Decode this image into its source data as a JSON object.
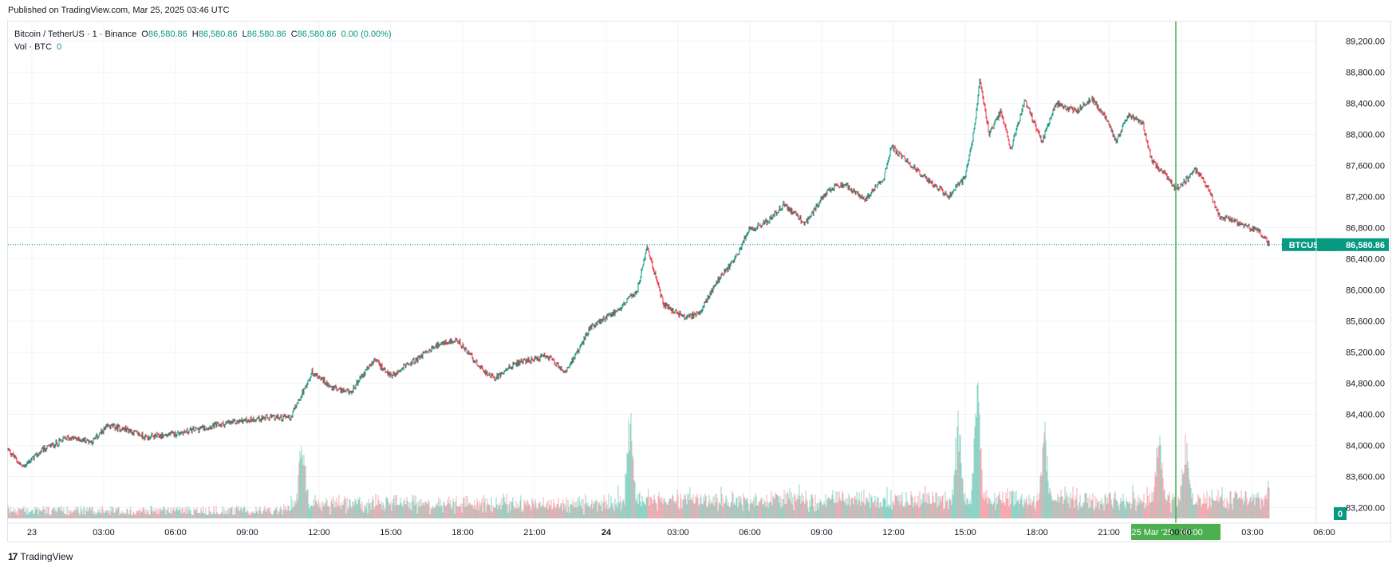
{
  "header": {
    "published": "Published on TradingView.com, Mar 25, 2025 03:46 UTC"
  },
  "legend": {
    "symbol": "Bitcoin / TetherUS · 1 · Binance",
    "o_label": "O",
    "o_value": "86,580.86",
    "h_label": "H",
    "h_value": "86,580.86",
    "l_label": "L",
    "l_value": "86,580.86",
    "c_label": "C",
    "c_value": "86,580.86",
    "change": "0.00 (0.00%)",
    "vol_label": "Vol · BTC",
    "vol_value": "0"
  },
  "footer": {
    "brand": "TradingView",
    "logo_text": "17"
  },
  "colors": {
    "up": "#089981",
    "down": "#f23645",
    "crosshair": "#22ab94",
    "time_badge": "#4caf50",
    "grid": "#f0f3fa"
  },
  "chart_data": {
    "type": "candlestick",
    "title": "Bitcoin / TetherUS · 1 · Binance",
    "symbol_badge": "BTCUSDT",
    "last_price": 86580.86,
    "last_price_label": "86,580.86",
    "volume_badge": "0",
    "y_min": 83000,
    "y_max": 89450,
    "y_ticks": [
      89200,
      88800,
      88400,
      88000,
      87600,
      87200,
      86800,
      86400,
      86000,
      85600,
      85200,
      84800,
      84400,
      84000,
      83600,
      83200
    ],
    "y_tick_labels": [
      "89,200.00",
      "88,800.00",
      "88,400.00",
      "88,000.00",
      "87,600.00",
      "87,200.00",
      "86,800.00",
      "86,400.00",
      "86,000.00",
      "85,600.00",
      "85,200.00",
      "84,800.00",
      "84,400.00",
      "84,000.00",
      "83,600.00",
      "83,200.00"
    ],
    "x_range_hours": [
      -1,
      31
    ],
    "x_ticks": [
      {
        "hour": 0,
        "label": "23",
        "bold": false
      },
      {
        "hour": 3,
        "label": "03:00",
        "bold": false
      },
      {
        "hour": 6,
        "label": "06:00",
        "bold": false
      },
      {
        "hour": 9,
        "label": "09:00",
        "bold": false
      },
      {
        "hour": 12,
        "label": "12:00",
        "bold": false
      },
      {
        "hour": 15,
        "label": "15:00",
        "bold": false
      },
      {
        "hour": 18,
        "label": "18:00",
        "bold": false
      },
      {
        "hour": 21,
        "label": "21:00",
        "bold": false
      },
      {
        "hour": 24,
        "label": "24",
        "bold": true
      },
      {
        "hour": 27,
        "label": "03:00",
        "bold": false
      },
      {
        "hour": 30,
        "label": "06:00",
        "bold": false
      },
      {
        "hour": 33,
        "label": "09:00",
        "bold": false
      },
      {
        "hour": 36,
        "label": "12:00",
        "bold": false
      },
      {
        "hour": 39,
        "label": "15:00",
        "bold": false
      },
      {
        "hour": 42,
        "label": "18:00",
        "bold": false
      },
      {
        "hour": 45,
        "label": "21:00",
        "bold": false
      },
      {
        "hour": 48,
        "label": "00:00",
        "bold": false
      },
      {
        "hour": 51,
        "label": "03:00",
        "bold": false
      },
      {
        "hour": 54,
        "label": "06:00",
        "bold": false
      }
    ],
    "x_start_hour": -1.0,
    "x_end_hour": 54.0,
    "crosshair_hour": 47.8,
    "crosshair_label": "25 Mar '25",
    "crosshair_time": "00:00",
    "last_bar_hour": 51.7,
    "price_path": [
      {
        "hour": -1.0,
        "price": 83950
      },
      {
        "hour": -0.4,
        "price": 83720
      },
      {
        "hour": 0.5,
        "price": 83950
      },
      {
        "hour": 1.5,
        "price": 84100
      },
      {
        "hour": 2.5,
        "price": 84050
      },
      {
        "hour": 3.2,
        "price": 84250
      },
      {
        "hour": 4.0,
        "price": 84200
      },
      {
        "hour": 4.8,
        "price": 84100
      },
      {
        "hour": 6.0,
        "price": 84150
      },
      {
        "hour": 7.5,
        "price": 84250
      },
      {
        "hour": 9.5,
        "price": 84350
      },
      {
        "hour": 10.8,
        "price": 84360
      },
      {
        "hour": 11.2,
        "price": 84600
      },
      {
        "hour": 11.7,
        "price": 84950
      },
      {
        "hour": 12.5,
        "price": 84750
      },
      {
        "hour": 13.3,
        "price": 84680
      },
      {
        "hour": 14.3,
        "price": 85100
      },
      {
        "hour": 15.0,
        "price": 84900
      },
      {
        "hour": 16.0,
        "price": 85100
      },
      {
        "hour": 17.0,
        "price": 85300
      },
      {
        "hour": 17.8,
        "price": 85350
      },
      {
        "hour": 18.6,
        "price": 85050
      },
      {
        "hour": 19.3,
        "price": 84850
      },
      {
        "hour": 20.2,
        "price": 85050
      },
      {
        "hour": 21.5,
        "price": 85150
      },
      {
        "hour": 22.3,
        "price": 84950
      },
      {
        "hour": 22.8,
        "price": 85200
      },
      {
        "hour": 23.3,
        "price": 85500
      },
      {
        "hour": 24.5,
        "price": 85750
      },
      {
        "hour": 25.3,
        "price": 86000
      },
      {
        "hour": 25.7,
        "price": 86550
      },
      {
        "hour": 26.4,
        "price": 85800
      },
      {
        "hour": 27.3,
        "price": 85650
      },
      {
        "hour": 27.9,
        "price": 85700
      },
      {
        "hour": 28.6,
        "price": 86100
      },
      {
        "hour": 29.4,
        "price": 86400
      },
      {
        "hour": 29.9,
        "price": 86750
      },
      {
        "hour": 30.8,
        "price": 86900
      },
      {
        "hour": 31.4,
        "price": 87100
      },
      {
        "hour": 32.3,
        "price": 86850
      },
      {
        "hour": 33.3,
        "price": 87300
      },
      {
        "hour": 34.0,
        "price": 87350
      },
      {
        "hour": 34.8,
        "price": 87150
      },
      {
        "hour": 35.6,
        "price": 87450
      },
      {
        "hour": 35.9,
        "price": 87850
      },
      {
        "hour": 36.6,
        "price": 87650
      },
      {
        "hour": 37.3,
        "price": 87450
      },
      {
        "hour": 38.3,
        "price": 87200
      },
      {
        "hour": 39.0,
        "price": 87450
      },
      {
        "hour": 39.4,
        "price": 88100
      },
      {
        "hour": 39.6,
        "price": 88700
      },
      {
        "hour": 40.0,
        "price": 88000
      },
      {
        "hour": 40.5,
        "price": 88300
      },
      {
        "hour": 40.9,
        "price": 87800
      },
      {
        "hour": 41.5,
        "price": 88450
      },
      {
        "hour": 42.2,
        "price": 87900
      },
      {
        "hour": 42.8,
        "price": 88400
      },
      {
        "hour": 43.6,
        "price": 88300
      },
      {
        "hour": 44.3,
        "price": 88450
      },
      {
        "hour": 44.9,
        "price": 88200
      },
      {
        "hour": 45.3,
        "price": 87900
      },
      {
        "hour": 45.8,
        "price": 88250
      },
      {
        "hour": 46.4,
        "price": 88150
      },
      {
        "hour": 46.8,
        "price": 87650
      },
      {
        "hour": 47.3,
        "price": 87500
      },
      {
        "hour": 47.8,
        "price": 87300
      },
      {
        "hour": 48.2,
        "price": 87400
      },
      {
        "hour": 48.6,
        "price": 87550
      },
      {
        "hour": 49.1,
        "price": 87350
      },
      {
        "hour": 49.6,
        "price": 86950
      },
      {
        "hour": 50.1,
        "price": 86900
      },
      {
        "hour": 50.8,
        "price": 86800
      },
      {
        "hour": 51.3,
        "price": 86750
      },
      {
        "hour": 51.7,
        "price": 86580
      }
    ],
    "volume_spikes": [
      {
        "hour": 11.3,
        "volume": 0.55
      },
      {
        "hour": 25.0,
        "volume": 0.7
      },
      {
        "hour": 39.5,
        "volume": 1.0
      },
      {
        "hour": 38.7,
        "volume": 0.65
      },
      {
        "hour": 42.3,
        "volume": 0.55
      },
      {
        "hour": 47.1,
        "volume": 0.55
      },
      {
        "hour": 48.2,
        "volume": 0.45
      },
      {
        "hour": 51.8,
        "volume": 0.3
      }
    ]
  }
}
